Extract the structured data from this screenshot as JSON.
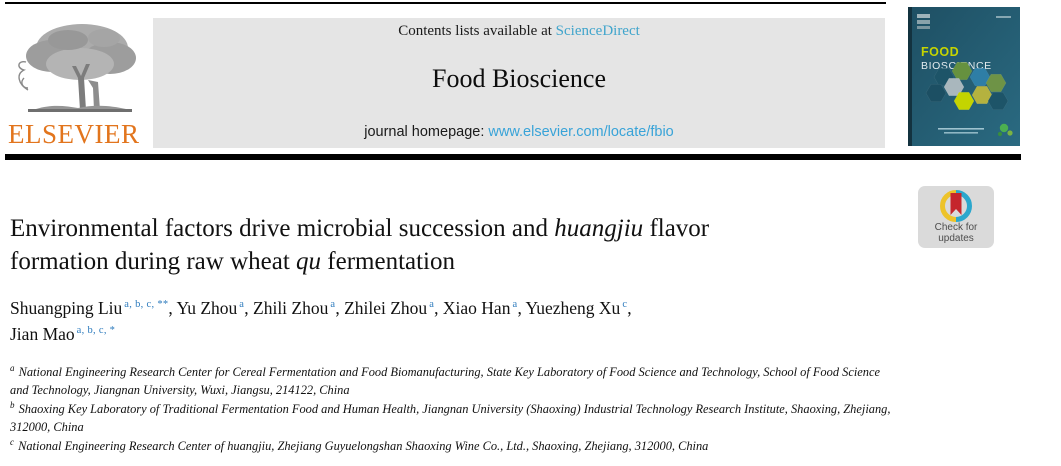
{
  "colors": {
    "sciencedirect_link_blue": "#41a5cc",
    "homepage_url_blue": "#38a3d8",
    "author_superscript_blue": "#2d7bbd",
    "elsevier_orange": "#e2751d",
    "banner_gray": "#e5e5e5",
    "cover_teal": "#235d72",
    "cover_food_yellow": "#c6d400",
    "badge_bookmark_red": "#c5262c",
    "badge_ring_blue": "#2ba7cd",
    "badge_ring_yellow": "#edc32a"
  },
  "header": {
    "contents_prefix": "Contents lists available at ",
    "contents_link": "ScienceDirect",
    "journal_title": "Food Bioscience",
    "homepage_prefix": "journal homepage: ",
    "homepage_url": "www.elsevier.com/locate/fbio",
    "publisher": "ELSEVIER"
  },
  "cover": {
    "line1": "FOOD",
    "line2": "BIOSCIENCE"
  },
  "badge": {
    "line1": "Check for",
    "line2": "updates"
  },
  "article": {
    "title_segments": [
      {
        "t": "Environmental factors drive microbial succession and "
      },
      {
        "t": "huangjiu",
        "i": true
      },
      {
        "t": " flavor"
      },
      {
        "br": true
      },
      {
        "t": "formation during raw wheat "
      },
      {
        "t": "qu",
        "i": true
      },
      {
        "t": " fermentation"
      }
    ],
    "authors": [
      {
        "name": "Shuangping Liu",
        "sup": "a, b, c, **"
      },
      {
        "name": "Yu Zhou",
        "sup": "a"
      },
      {
        "name": "Zhili Zhou",
        "sup": "a"
      },
      {
        "name": "Zhilei Zhou",
        "sup": "a"
      },
      {
        "name": "Xiao Han",
        "sup": "a"
      },
      {
        "name": "Yuezheng Xu",
        "sup": "c",
        "br": true
      },
      {
        "name": "Jian Mao",
        "sup": "a, b, c, *"
      }
    ],
    "affiliations": [
      {
        "sup": "a",
        "text": "National Engineering Research Center for Cereal Fermentation and Food Biomanufacturing, State Key Laboratory of Food Science and Technology, School of Food Science and Technology, Jiangnan University, Wuxi, Jiangsu, 214122, China"
      },
      {
        "sup": "b",
        "text": "Shaoxing Key Laboratory of Traditional Fermentation Food and Human Health, Jiangnan University (Shaoxing) Industrial Technology Research Institute, Shaoxing, Zhejiang, 312000, China"
      },
      {
        "sup": "c",
        "text": "National Engineering Research Center of huangjiu, Zhejiang Guyuelongshan Shaoxing Wine Co., Ltd., Shaoxing, Zhejiang, 312000, China"
      }
    ]
  }
}
